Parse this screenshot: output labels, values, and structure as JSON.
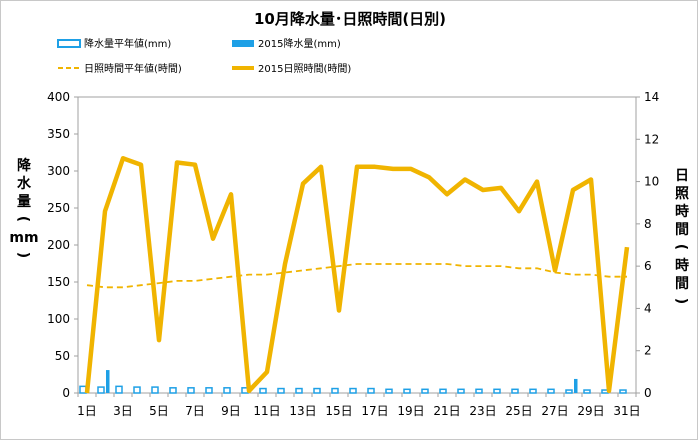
{
  "chart_data": {
    "type": "bar+line",
    "title": "10月降水量･日照時間(日別)",
    "categories": [
      "1日",
      "2日",
      "3日",
      "4日",
      "5日",
      "6日",
      "7日",
      "8日",
      "9日",
      "10日",
      "11日",
      "12日",
      "13日",
      "14日",
      "15日",
      "16日",
      "17日",
      "18日",
      "19日",
      "20日",
      "21日",
      "22日",
      "23日",
      "24日",
      "25日",
      "26日",
      "27日",
      "28日",
      "29日",
      "30日",
      "31日"
    ],
    "x_tick_labels": [
      "1日",
      "3日",
      "5日",
      "7日",
      "9日",
      "11日",
      "13日",
      "15日",
      "17日",
      "19日",
      "21日",
      "23日",
      "25日",
      "27日",
      "29日",
      "31日"
    ],
    "y_left": {
      "label": "降水量(mm)",
      "label_chars": [
        "降",
        "水",
        "量",
        "(",
        "mm",
        ")"
      ],
      "min": 0,
      "max": 400,
      "ticks": [
        0,
        50,
        100,
        150,
        200,
        250,
        300,
        350,
        400
      ]
    },
    "y_right": {
      "label": "日照時間(時間)",
      "label_chars": [
        "日",
        "照",
        "時",
        "間",
        "(",
        "時",
        "間",
        ")"
      ],
      "min": 0,
      "max": 14,
      "ticks": [
        0,
        2,
        4,
        6,
        8,
        10,
        12,
        14
      ]
    },
    "series": [
      {
        "name": "降水量平年値(mm)",
        "type": "bar",
        "axis": "left",
        "style": "outline",
        "color": "#1ea0e6",
        "values": [
          9,
          8,
          9,
          8,
          8,
          7,
          7,
          7,
          7,
          7,
          6,
          6,
          6,
          6,
          6,
          6,
          6,
          5,
          5,
          5,
          5,
          5,
          5,
          5,
          5,
          5,
          5,
          4,
          4,
          4,
          4
        ]
      },
      {
        "name": "2015降水量(mm)",
        "type": "bar",
        "axis": "left",
        "style": "filled",
        "color": "#1ea0e6",
        "values": [
          0,
          31,
          0,
          0,
          0,
          0,
          0,
          0,
          0,
          0,
          0,
          0,
          0,
          0,
          0,
          0,
          0,
          0,
          0,
          0,
          0,
          0,
          0,
          0,
          0,
          0,
          0,
          19,
          0,
          0,
          0
        ]
      },
      {
        "name": "日照時間平年値(時間)",
        "type": "line",
        "axis": "right",
        "style": "dashed",
        "color": "#f0b400",
        "values": [
          5.1,
          5.0,
          5.0,
          5.1,
          5.2,
          5.3,
          5.3,
          5.4,
          5.5,
          5.6,
          5.6,
          5.7,
          5.8,
          5.9,
          6.0,
          6.1,
          6.1,
          6.1,
          6.1,
          6.1,
          6.1,
          6.0,
          6.0,
          6.0,
          5.9,
          5.9,
          5.7,
          5.6,
          5.6,
          5.5,
          5.5
        ]
      },
      {
        "name": "2015日照時間(時間)",
        "type": "line",
        "axis": "right",
        "style": "solid",
        "color": "#f0b400",
        "values": [
          0,
          8.6,
          11.1,
          10.8,
          2.5,
          10.9,
          10.8,
          7.3,
          9.4,
          0.1,
          1.0,
          6.1,
          9.9,
          10.7,
          3.9,
          10.7,
          10.7,
          10.6,
          10.6,
          10.2,
          9.4,
          10.1,
          9.6,
          9.7,
          8.6,
          10.0,
          5.8,
          9.6,
          10.1,
          0.1,
          6.9
        ]
      }
    ],
    "grid": false,
    "legend_position": "top"
  }
}
